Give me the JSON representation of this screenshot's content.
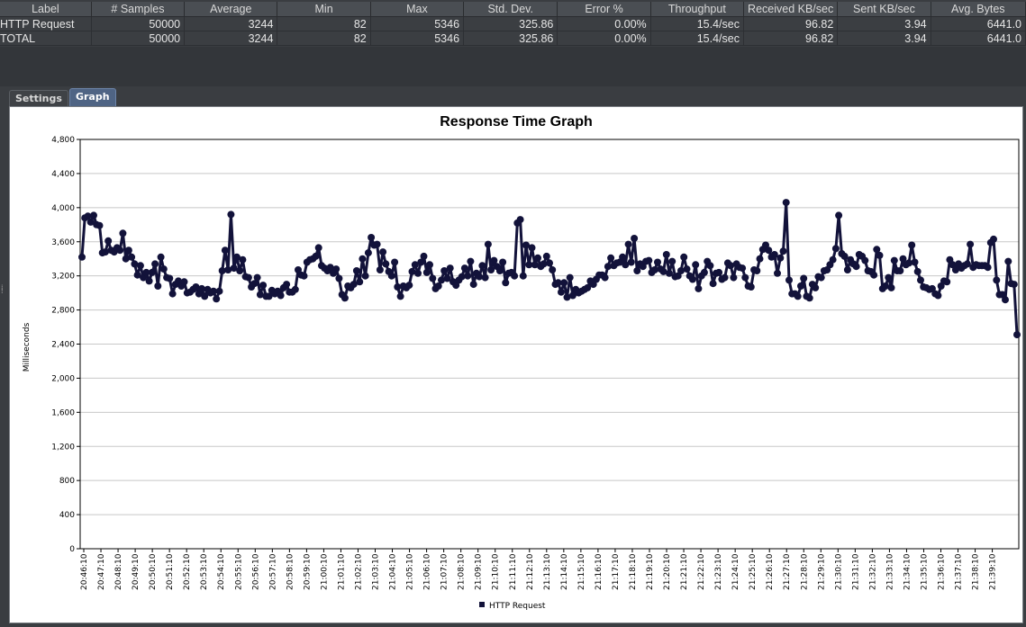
{
  "table": {
    "headers": [
      "Label",
      "# Samples",
      "Average",
      "Min",
      "Max",
      "Std. Dev.",
      "Error %",
      "Throughput",
      "Received KB/sec",
      "Sent KB/sec",
      "Avg. Bytes"
    ],
    "rows": [
      [
        "HTTP Request",
        "50000",
        "3244",
        "82",
        "5346",
        "325.86",
        "0.00%",
        "15.4/sec",
        "96.82",
        "3.94",
        "6441.0"
      ],
      [
        "TOTAL",
        "50000",
        "3244",
        "82",
        "5346",
        "325.86",
        "0.00%",
        "15.4/sec",
        "96.82",
        "3.94",
        "6441.0"
      ]
    ]
  },
  "tabs": [
    {
      "label": "Settings",
      "active": false
    },
    {
      "label": "Graph",
      "active": true
    }
  ],
  "chart_data": {
    "type": "line",
    "title": "Response Time Graph",
    "ylabel": "Milliseconds",
    "xlabel": "",
    "ylim": [
      0,
      4800
    ],
    "yticks": [
      "0",
      "400",
      "800",
      "1,200",
      "1,600",
      "2,000",
      "2,400",
      "2,800",
      "3,200",
      "3,600",
      "4,000",
      "4,400",
      "4,800"
    ],
    "x_tick_labels": [
      "20:46:10",
      "20:47:10",
      "20:48:10",
      "20:49:10",
      "20:50:10",
      "20:51:10",
      "20:52:10",
      "20:53:10",
      "20:54:10",
      "20:55:10",
      "20:56:10",
      "20:57:10",
      "20:58:10",
      "20:59:10",
      "21:00:10",
      "21:01:10",
      "21:02:10",
      "21:03:10",
      "21:04:10",
      "21:05:10",
      "21:06:10",
      "21:07:10",
      "21:08:10",
      "21:09:10",
      "21:10:10",
      "21:11:10",
      "21:12:10",
      "21:13:10",
      "21:14:10",
      "21:15:10",
      "21:16:10",
      "21:17:10",
      "21:18:10",
      "21:19:10",
      "21:20:10",
      "21:21:10",
      "21:22:10",
      "21:23:10",
      "21:24:10",
      "21:25:10",
      "21:26:10",
      "21:27:10",
      "21:28:10",
      "21:29:10",
      "21:30:10",
      "21:31:10",
      "21:32:10",
      "21:33:10",
      "21:34:10",
      "21:35:10",
      "21:36:10",
      "21:37:10",
      "21:38:10",
      "21:39:10"
    ],
    "grid": true,
    "legend_position": "bottom",
    "series": [
      {
        "name": "HTTP Request",
        "color": "#12123a",
        "values": [
          3420,
          3880,
          3900,
          3830,
          3910,
          3800,
          3790,
          3470,
          3480,
          3610,
          3500,
          3480,
          3530,
          3500,
          3700,
          3400,
          3500,
          3420,
          3340,
          3210,
          3320,
          3180,
          3240,
          3140,
          3240,
          3340,
          3080,
          3420,
          3280,
          3180,
          3170,
          2990,
          3100,
          3140,
          3080,
          3130,
          3000,
          3010,
          3040,
          3070,
          2990,
          3050,
          2960,
          3040,
          3000,
          3020,
          2930,
          3020,
          3260,
          3500,
          3270,
          3920,
          3290,
          3420,
          3260,
          3390,
          3190,
          3180,
          3070,
          3110,
          3180,
          2980,
          3090,
          2960,
          2960,
          3030,
          2990,
          3020,
          2970,
          3060,
          3100,
          3010,
          3010,
          3040,
          3270,
          3210,
          3200,
          3360,
          3390,
          3400,
          3430,
          3530,
          3320,
          3290,
          3260,
          3300,
          3230,
          3280,
          3170,
          2980,
          2940,
          3080,
          3060,
          3100,
          3260,
          3130,
          3400,
          3200,
          3470,
          3650,
          3560,
          3570,
          3270,
          3480,
          3340,
          3250,
          3200,
          3360,
          3070,
          2960,
          3080,
          3060,
          3090,
          3250,
          3330,
          3230,
          3360,
          3430,
          3240,
          3330,
          3170,
          3050,
          3080,
          3150,
          3260,
          3170,
          3290,
          3130,
          3090,
          3150,
          3190,
          3290,
          3200,
          3370,
          3100,
          3230,
          3190,
          3320,
          3180,
          3570,
          3270,
          3380,
          3310,
          3260,
          3360,
          3120,
          3230,
          3240,
          3200,
          3820,
          3860,
          3200,
          3560,
          3330,
          3530,
          3330,
          3410,
          3310,
          3340,
          3430,
          3350,
          3270,
          3100,
          3120,
          3010,
          3120,
          2950,
          3180,
          2970,
          3040,
          3000,
          3020,
          3040,
          3060,
          3140,
          3100,
          3160,
          3210,
          3210,
          3180,
          3310,
          3410,
          3320,
          3350,
          3360,
          3420,
          3330,
          3570,
          3360,
          3640,
          3260,
          3340,
          3310,
          3370,
          3380,
          3240,
          3270,
          3360,
          3280,
          3250,
          3450,
          3230,
          3370,
          3190,
          3200,
          3260,
          3420,
          3280,
          3200,
          3160,
          3330,
          3050,
          3200,
          3240,
          3370,
          3320,
          3110,
          3230,
          3240,
          3160,
          3180,
          3350,
          3320,
          3180,
          3340,
          3300,
          3290,
          3180,
          3080,
          3070,
          3270,
          3260,
          3400,
          3510,
          3560,
          3500,
          3420,
          3450,
          3230,
          3410,
          3490,
          4060,
          3150,
          2990,
          2990,
          2960,
          3080,
          3170,
          2960,
          2940,
          3100,
          3060,
          3190,
          3180,
          3260,
          3270,
          3330,
          3390,
          3520,
          3910,
          3460,
          3430,
          3270,
          3390,
          3340,
          3310,
          3450,
          3430,
          3380,
          3260,
          3250,
          3210,
          3510,
          3440,
          3050,
          3080,
          3180,
          3060,
          3380,
          3260,
          3260,
          3400,
          3330,
          3350,
          3560,
          3360,
          3250,
          3150,
          3070,
          3060,
          3040,
          3050,
          2990,
          2970,
          3080,
          3140,
          3130,
          3390,
          3330,
          3270,
          3340,
          3290,
          3320,
          3340,
          3570,
          3300,
          3330,
          3320,
          3320,
          3320,
          3300,
          3590,
          3630,
          3150,
          2980,
          2980,
          2920,
          3370,
          3110,
          3100,
          2510
        ]
      }
    ]
  }
}
